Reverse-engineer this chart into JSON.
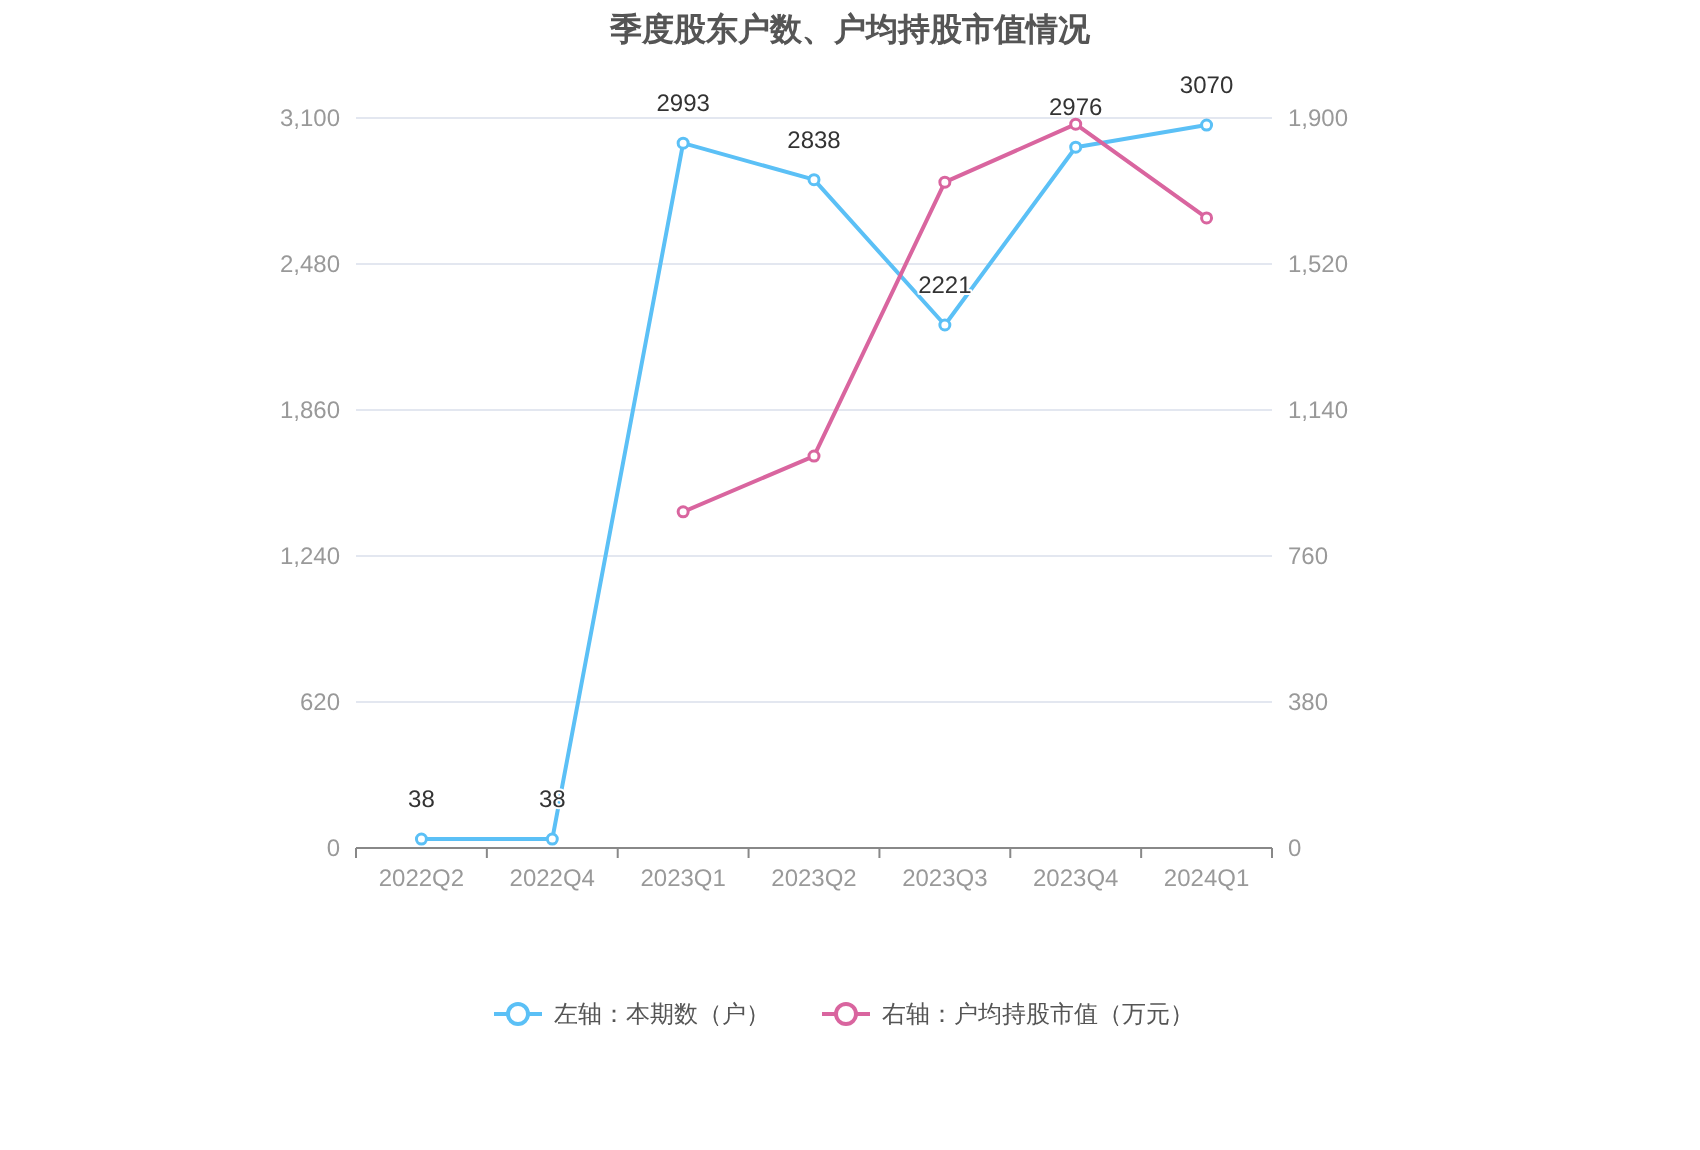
{
  "chart_data": {
    "type": "line",
    "title": "季度股东户数、户均持股市值情况",
    "categories": [
      "2022Q2",
      "2022Q4",
      "2023Q1",
      "2023Q2",
      "2023Q3",
      "2023Q4",
      "2024Q1"
    ],
    "series": [
      {
        "name": "左轴：本期数（户）",
        "color": "#5bc0f6",
        "values": [
          38,
          38,
          2993,
          2838,
          2221,
          2976,
          3070
        ],
        "value_labels": [
          "38",
          "38",
          "2993",
          "2838",
          "2221",
          "2976",
          "3070"
        ]
      },
      {
        "name": "右轴：户均持股市值（万元）",
        "color": "#d9659f",
        "axis": "y2",
        "values": [
          null,
          null,
          875,
          1020,
          1733,
          1884,
          1640
        ]
      }
    ],
    "ylim": [
      0,
      3100
    ],
    "yticks": [
      0,
      {
        "value": 620,
        "label": "620"
      },
      {
        "value": 1240,
        "label": "1,240"
      },
      {
        "value": 1860,
        "label": "1,860"
      },
      {
        "value": 2480,
        "label": "2,480"
      },
      {
        "value": 3100,
        "label": "3,100"
      }
    ],
    "y2lim": [
      0,
      1900
    ],
    "y2ticks": [
      0,
      380,
      760,
      {
        "value": 1140,
        "label": "1,140"
      },
      {
        "value": 1520,
        "label": "1,520"
      },
      {
        "value": 1900,
        "label": "1,900"
      }
    ],
    "grid": "y",
    "legend": "bottom",
    "marker": "circle"
  }
}
